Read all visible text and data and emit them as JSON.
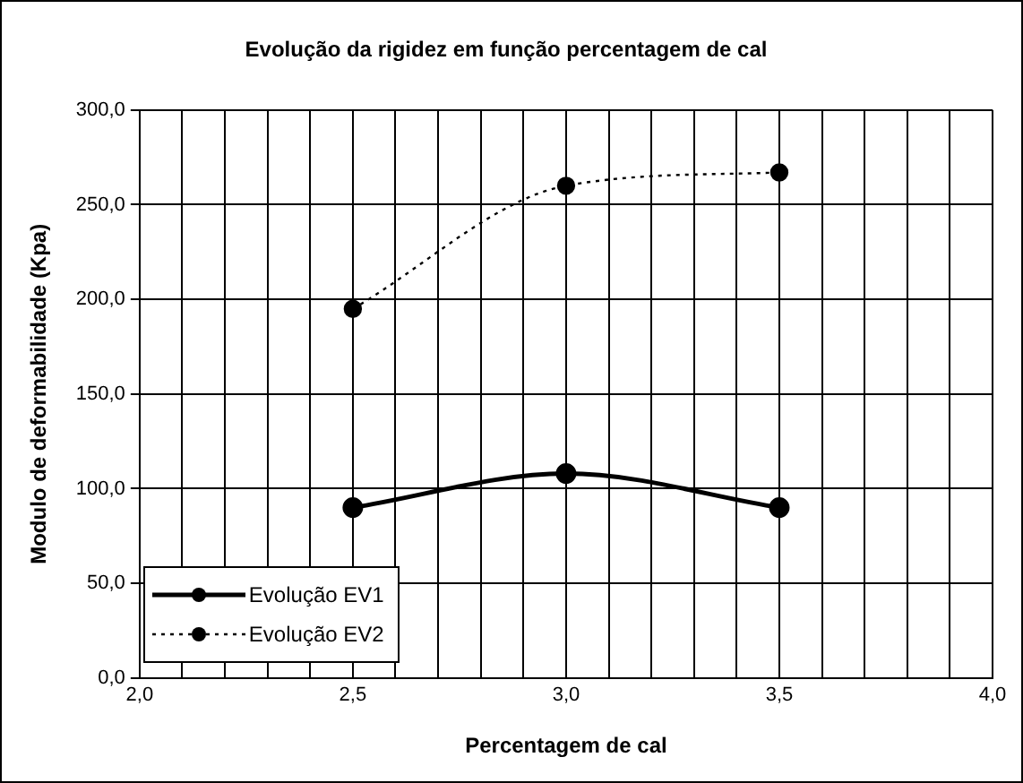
{
  "chart_data": {
    "type": "line",
    "title": "Evolução da rigidez em função percentagem de cal",
    "xlabel": "Percentagem de cal",
    "ylabel": "Modulo de deformabilidade (Kpa)",
    "x": [
      2.5,
      3.0,
      3.5
    ],
    "series": [
      {
        "name": "Evolução EV1",
        "color": "#000000",
        "values": [
          90,
          108,
          90
        ],
        "line_style": "solid"
      },
      {
        "name": "Evolução EV2",
        "color": "#000000",
        "values": [
          195,
          260,
          267
        ],
        "line_style": "dotted"
      }
    ],
    "xlim": [
      2.0,
      4.0
    ],
    "xticks": [
      {
        "value": 2.0,
        "label": "2,0"
      },
      {
        "value": 2.1,
        "label": null
      },
      {
        "value": 2.2,
        "label": null
      },
      {
        "value": 2.3,
        "label": null
      },
      {
        "value": 2.4,
        "label": null
      },
      {
        "value": 2.5,
        "label": "2,5"
      },
      {
        "value": 2.6,
        "label": null
      },
      {
        "value": 2.7,
        "label": null
      },
      {
        "value": 2.8,
        "label": null
      },
      {
        "value": 2.9,
        "label": null
      },
      {
        "value": 3.0,
        "label": "3,0"
      },
      {
        "value": 3.1,
        "label": null
      },
      {
        "value": 3.2,
        "label": null
      },
      {
        "value": 3.3,
        "label": null
      },
      {
        "value": 3.4,
        "label": null
      },
      {
        "value": 3.5,
        "label": "3,5"
      },
      {
        "value": 3.6,
        "label": null
      },
      {
        "value": 3.7,
        "label": null
      },
      {
        "value": 3.8,
        "label": null
      },
      {
        "value": 3.9,
        "label": null
      },
      {
        "value": 4.0,
        "label": "4,0"
      }
    ],
    "ylim": [
      0,
      300
    ],
    "yticks": [
      {
        "value": 0,
        "label": "0,0"
      },
      {
        "value": 50,
        "label": "50,0"
      },
      {
        "value": 100,
        "label": "100,0"
      },
      {
        "value": 150,
        "label": "150,0"
      },
      {
        "value": 200,
        "label": "200,0"
      },
      {
        "value": 250,
        "label": "250,0"
      },
      {
        "value": 300,
        "label": "300,0"
      }
    ],
    "grid": true,
    "legend": "bottom left",
    "marker": "circle"
  }
}
